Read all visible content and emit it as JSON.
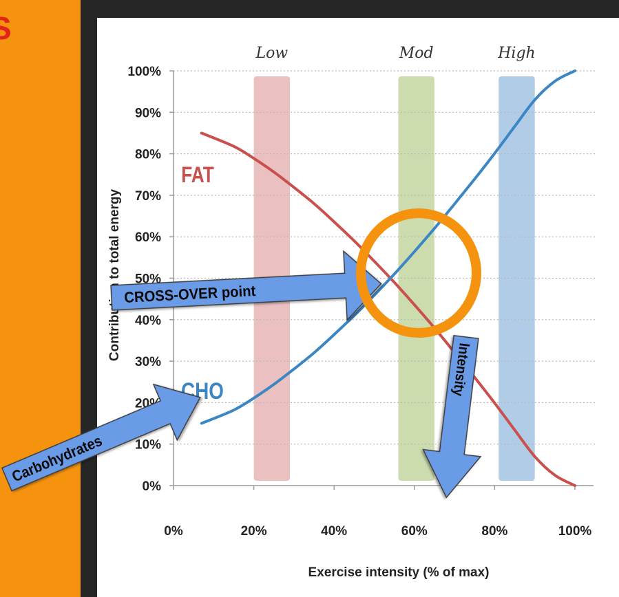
{
  "slide": {
    "title_fragment": "S",
    "colors": {
      "panel": "#f5930f",
      "title": "#e3231b",
      "background": "#262626",
      "card": "#ffffff"
    }
  },
  "chart_data": {
    "type": "line",
    "xlabel": "Exercise intensity (% of max)",
    "ylabel": "Contribution to total energy",
    "xlim": [
      0,
      100
    ],
    "ylim": [
      0,
      100
    ],
    "x_ticks": [
      "0%",
      "20%",
      "40%",
      "60%",
      "80%",
      "100%"
    ],
    "y_ticks": [
      "0%",
      "10%",
      "20%",
      "30%",
      "40%",
      "50%",
      "60%",
      "70%",
      "80%",
      "90%",
      "100%"
    ],
    "grid": "horizontal dotted",
    "series": [
      {
        "name": "FAT",
        "color": "#c9504c",
        "x": [
          7,
          15,
          20,
          25,
          30,
          35,
          40,
          45,
          50,
          55,
          60,
          65,
          70,
          75,
          80,
          85,
          90,
          95,
          100
        ],
        "y": [
          85,
          81.8,
          78.9,
          75.6,
          71.9,
          68,
          63.6,
          59,
          54.1,
          49,
          43.6,
          38,
          32.1,
          26.1,
          19.9,
          13.4,
          7,
          2.5,
          0
        ]
      },
      {
        "name": "CHO",
        "color": "#3c86c4",
        "x": [
          7,
          15,
          20,
          25,
          30,
          35,
          40,
          45,
          50,
          55,
          60,
          65,
          70,
          75,
          80,
          85,
          90,
          95,
          100
        ],
        "y": [
          15,
          18.2,
          21.1,
          24.4,
          28.1,
          32,
          36.4,
          41,
          45.9,
          51,
          56.4,
          62,
          67.9,
          73.9,
          80.1,
          86.6,
          93,
          97.5,
          100
        ]
      }
    ],
    "bands": [
      {
        "label": "Low",
        "x_range": [
          20,
          29
        ],
        "color": "#e8b9b9"
      },
      {
        "label": "Mod",
        "x_range": [
          56,
          65
        ],
        "color": "#c8d8a6"
      },
      {
        "label": "High",
        "x_range": [
          81,
          90
        ],
        "color": "#a9c6e4"
      }
    ],
    "series_labels": {
      "fat": "FAT",
      "cho": "CHO"
    },
    "annotations": {
      "crossover_label": "CROSS-OVER point",
      "carbohydrates_label": "Carbohydrates",
      "intensity_label": "Intensity",
      "circle_color": "#f5930f",
      "arrow_color": "#6a9be6"
    }
  }
}
